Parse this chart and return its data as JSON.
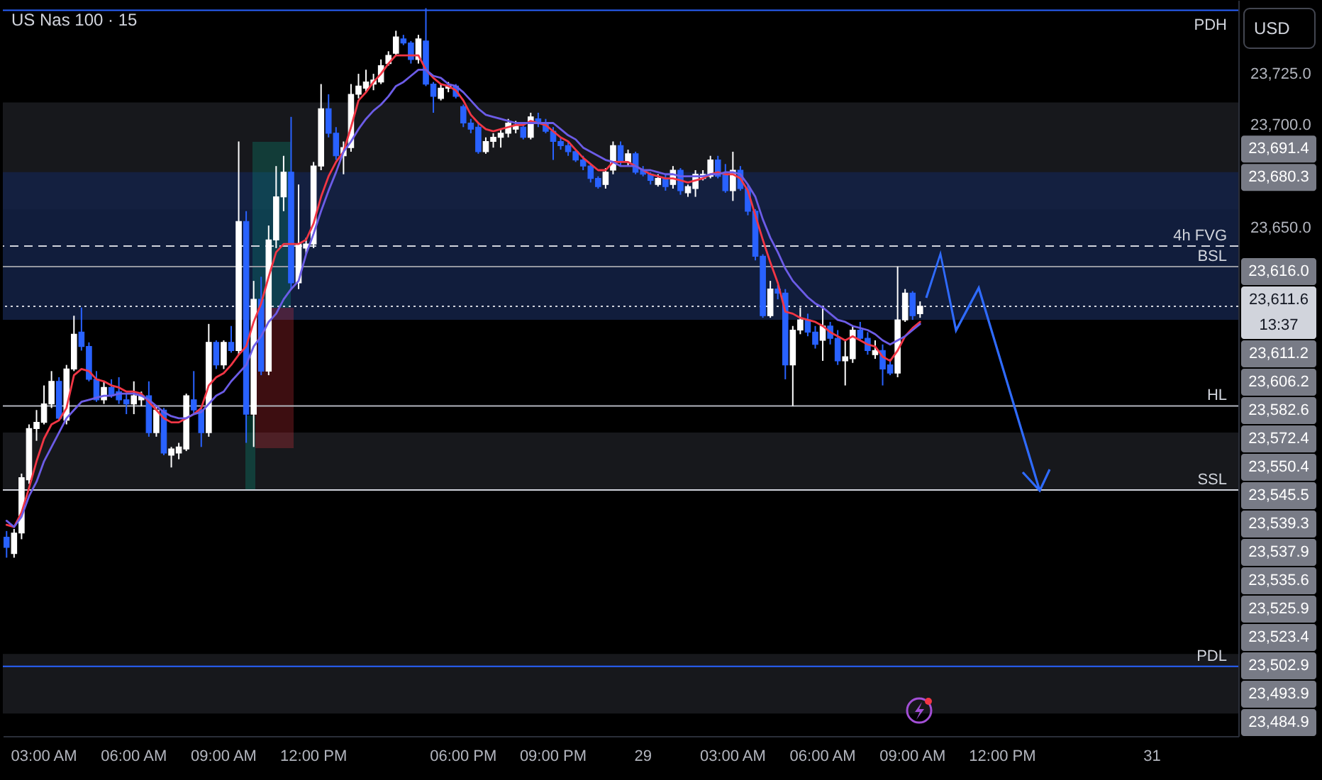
{
  "chart_data": {
    "type": "candlestick",
    "title": "US Nas 100 · 15",
    "categories": [
      null,
      null,
      null,
      null,
      null,
      "03:00 AM",
      null,
      null,
      null,
      null,
      null,
      null,
      null,
      null,
      null,
      null,
      null,
      "06:00 AM",
      null,
      null,
      null,
      null,
      null,
      null,
      null,
      null,
      null,
      null,
      null,
      "09:00 AM",
      null,
      null,
      null,
      null,
      null,
      null,
      null,
      null,
      null,
      null,
      null,
      "12:00 PM",
      null,
      null,
      null,
      null,
      null,
      null,
      null,
      null,
      null,
      null,
      null,
      null,
      null,
      null,
      null,
      null,
      null,
      null,
      null,
      "06:00 PM",
      null,
      null,
      null,
      null,
      null,
      null,
      null,
      null,
      null,
      null,
      null,
      "09:00 PM",
      null,
      null,
      null,
      null,
      null,
      null,
      null,
      null,
      null,
      null,
      null,
      "29",
      null,
      null,
      null,
      null,
      null,
      null,
      null,
      null,
      null,
      null,
      null,
      "03:00 AM",
      null,
      null,
      null,
      null,
      null,
      null,
      null,
      null,
      null,
      null,
      null,
      "06:00 AM",
      null,
      null,
      null,
      null,
      null,
      null,
      null,
      null,
      null,
      null,
      null,
      "09:00 AM",
      null,
      null,
      null,
      null,
      null,
      null,
      null,
      null,
      null,
      null,
      null,
      "12:00 PM",
      null,
      null,
      null,
      null,
      null,
      null,
      null,
      null,
      null,
      null,
      null,
      null,
      null,
      null,
      null,
      null,
      null,
      null,
      null,
      "31",
      null,
      null,
      null,
      null,
      null,
      null,
      null,
      null,
      null,
      null,
      null
    ],
    "ohlc": [
      [
        23499,
        23502,
        23489,
        23494
      ],
      [
        23491,
        23503,
        23489,
        23501
      ],
      [
        23501,
        23530,
        23498,
        23528
      ],
      [
        23527,
        23554,
        23525,
        23552
      ],
      [
        23552,
        23561,
        23546,
        23555
      ],
      [
        23555,
        23573,
        23554,
        23564
      ],
      [
        23564,
        23580,
        23562,
        23575
      ],
      [
        23575,
        23577,
        23556,
        23557
      ],
      [
        23556,
        23583,
        23554,
        23581
      ],
      [
        23581,
        23607,
        23580,
        23598
      ],
      [
        23599,
        23611,
        23590,
        23592
      ],
      [
        23592,
        23594,
        23575,
        23576
      ],
      [
        23576,
        23580,
        23565,
        23566
      ],
      [
        23566,
        23575,
        23564,
        23572
      ],
      [
        23572,
        23576,
        23567,
        23568
      ],
      [
        23570,
        23577,
        23564,
        23566
      ],
      [
        23566,
        23569,
        23559,
        23564
      ],
      [
        23564,
        23575,
        23559,
        23568
      ],
      [
        23566,
        23570,
        23563,
        23568
      ],
      [
        23568,
        23575,
        23548,
        23550
      ],
      [
        23550,
        23563,
        23548,
        23561
      ],
      [
        23561,
        23562,
        23539,
        23540
      ],
      [
        23539,
        23543,
        23533,
        23542
      ],
      [
        23540,
        23545,
        23537,
        23543
      ],
      [
        23542,
        23569,
        23541,
        23568
      ],
      [
        23566,
        23580,
        23559,
        23561
      ],
      [
        23561,
        23563,
        23543,
        23550
      ],
      [
        23550,
        23603,
        23548,
        23594
      ],
      [
        23594,
        23595,
        23581,
        23583
      ],
      [
        23583,
        23595,
        23581,
        23594
      ],
      [
        23594,
        23602,
        23589,
        23590
      ],
      [
        23590,
        23692,
        23588,
        23653
      ],
      [
        23653,
        23658,
        23545,
        23559
      ],
      [
        23559,
        23624,
        23543,
        23615
      ],
      [
        23615,
        23626,
        23578,
        23580
      ],
      [
        23580,
        23651,
        23578,
        23644
      ],
      [
        23644,
        23680,
        23640,
        23665
      ],
      [
        23665,
        23685,
        23658,
        23677
      ],
      [
        23677,
        23704,
        23620,
        23623
      ],
      [
        23623,
        23671,
        23620,
        23642
      ],
      [
        23640,
        23645,
        23637,
        23642
      ],
      [
        23642,
        23682,
        23640,
        23680
      ],
      [
        23680,
        23720,
        23678,
        23708
      ],
      [
        23708,
        23715,
        23694,
        23696
      ],
      [
        23696,
        23699,
        23683,
        23685
      ],
      [
        23685,
        23692,
        23676,
        23689
      ],
      [
        23689,
        23720,
        23687,
        23715
      ],
      [
        23715,
        23725,
        23713,
        23719
      ],
      [
        23718,
        23727,
        23716,
        23721
      ],
      [
        23720,
        23725,
        23717,
        23722
      ],
      [
        23721,
        23732,
        23720,
        23729
      ],
      [
        23730,
        23736,
        23729,
        23734
      ],
      [
        23735,
        23746,
        23734,
        23743
      ],
      [
        23742,
        23744,
        23739,
        23740
      ],
      [
        23740,
        23741,
        23730,
        23732
      ],
      [
        23732,
        23744,
        23730,
        23742
      ],
      [
        23741,
        23757,
        23719,
        23720
      ],
      [
        23720,
        23721,
        23706,
        23714
      ],
      [
        23713,
        23720,
        23712,
        23718
      ],
      [
        23718,
        23721,
        23716,
        23719
      ],
      [
        23719,
        23720,
        23713,
        23714
      ],
      [
        23709,
        23710,
        23699,
        23701
      ],
      [
        23701,
        23703,
        23696,
        23698
      ],
      [
        23699,
        23701,
        23686,
        23687
      ],
      [
        23687,
        23694,
        23686,
        23692
      ],
      [
        23692,
        23696,
        23689,
        23694
      ],
      [
        23694,
        23698,
        23689,
        23696
      ],
      [
        23696,
        23703,
        23694,
        23701
      ],
      [
        23698,
        23702,
        23696,
        23700
      ],
      [
        23699,
        23701,
        23693,
        23694
      ],
      [
        23694,
        23706,
        23693,
        23704
      ],
      [
        23703,
        23706,
        23699,
        23701
      ],
      [
        23701,
        23703,
        23696,
        23697
      ],
      [
        23697,
        23699,
        23683,
        23692
      ],
      [
        23692,
        23694,
        23688,
        23690
      ],
      [
        23690,
        23692,
        23685,
        23687
      ],
      [
        23687,
        23688,
        23682,
        23683
      ],
      [
        23683,
        23685,
        23678,
        23680
      ],
      [
        23680,
        23681,
        23672,
        23674
      ],
      [
        23674,
        23675,
        23669,
        23670
      ],
      [
        23671,
        23679,
        23669,
        23677
      ],
      [
        23678,
        23692,
        23676,
        23690
      ],
      [
        23690,
        23692,
        23680,
        23682
      ],
      [
        23682,
        23688,
        23680,
        23686
      ],
      [
        23686,
        23687,
        23676,
        23677
      ],
      [
        23678,
        23680,
        23675,
        23676
      ],
      [
        23676,
        23677,
        23671,
        23673
      ],
      [
        23671,
        23676,
        23670,
        23674
      ],
      [
        23674,
        23676,
        23668,
        23670
      ],
      [
        23671,
        23680,
        23669,
        23678
      ],
      [
        23678,
        23679,
        23666,
        23668
      ],
      [
        23667,
        23671,
        23665,
        23670
      ],
      [
        23669,
        23678,
        23665,
        23676
      ],
      [
        23674,
        23678,
        23673,
        23676
      ],
      [
        23675,
        23685,
        23674,
        23683
      ],
      [
        23683,
        23685,
        23674,
        23675
      ],
      [
        23676,
        23681,
        23667,
        23668
      ],
      [
        23668,
        23687,
        23663,
        23678
      ],
      [
        23678,
        23680,
        23668,
        23669
      ],
      [
        23669,
        23671,
        23656,
        23658
      ],
      [
        23658,
        23659,
        23634,
        23636
      ],
      [
        23636,
        23637,
        23606,
        23607
      ],
      [
        23607,
        23624,
        23606,
        23620
      ],
      [
        23620,
        23622,
        23615,
        23618
      ],
      [
        23618,
        23620,
        23576,
        23583
      ],
      [
        23583,
        23602,
        23563,
        23600
      ],
      [
        23600,
        23611,
        23598,
        23605
      ],
      [
        23605,
        23608,
        23597,
        23599
      ],
      [
        23599,
        23602,
        23591,
        23593
      ],
      [
        23595,
        23611,
        23585,
        23602
      ],
      [
        23602,
        23604,
        23593,
        23596
      ],
      [
        23596,
        23600,
        23583,
        23585
      ],
      [
        23585,
        23595,
        23573,
        23587
      ],
      [
        23586,
        23602,
        23584,
        23600
      ],
      [
        23600,
        23604,
        23595,
        23596
      ],
      [
        23596,
        23599,
        23588,
        23590
      ],
      [
        23588,
        23595,
        23586,
        23590
      ],
      [
        23590,
        23593,
        23573,
        23581
      ],
      [
        23583,
        23586,
        23578,
        23579
      ],
      [
        23579,
        23631,
        23577,
        23605
      ],
      [
        23605,
        23620,
        23604,
        23618
      ],
      [
        23618,
        23619,
        23605,
        23607
      ],
      [
        23608,
        23614,
        23606,
        23611.6
      ],
      null,
      null,
      null,
      null,
      null,
      null,
      null,
      null,
      null,
      null,
      null,
      null,
      null,
      null,
      null,
      null,
      null,
      null,
      null,
      null,
      null,
      null,
      null,
      null,
      null,
      null,
      null,
      null,
      null,
      null,
      null,
      null,
      null,
      null,
      null,
      null,
      null,
      null,
      null,
      null,
      null,
      null
    ],
    "colors": [
      "#2962ff",
      "#ffffff",
      "#ffffff",
      "#ffffff",
      "#ffffff",
      "#ffffff",
      "#ffffff",
      "#2962ff",
      "#ffffff",
      "#ffffff",
      "#2962ff",
      "#2962ff",
      "#2962ff",
      "#ffffff",
      "#2962ff",
      "#2962ff",
      "#2962ff",
      "#ffffff",
      "#ffffff",
      "#2962ff",
      "#ffffff",
      "#2962ff",
      "#ffffff",
      "#ffffff",
      "#ffffff",
      "#2962ff",
      "#2962ff",
      "#ffffff",
      "#2962ff",
      "#ffffff",
      "#2962ff",
      "#ffffff",
      "#2962ff",
      "#ffffff",
      "#2962ff",
      "#ffffff",
      "#ffffff",
      "#ffffff",
      "#2962ff",
      "#ffffff",
      "#ffffff",
      "#ffffff",
      "#ffffff",
      "#2962ff",
      "#2962ff",
      "#ffffff",
      "#ffffff",
      "#ffffff",
      "#ffffff",
      "#ffffff",
      "#ffffff",
      "#ffffff",
      "#ffffff",
      "#2962ff",
      "#2962ff",
      "#ffffff",
      "#2962ff",
      "#2962ff",
      "#ffffff",
      "#ffffff",
      "#2962ff",
      "#2962ff",
      "#2962ff",
      "#2962ff",
      "#ffffff",
      "#ffffff",
      "#ffffff",
      "#ffffff",
      "#ffffff",
      "#2962ff",
      "#ffffff",
      "#2962ff",
      "#2962ff",
      "#2962ff",
      "#2962ff",
      "#2962ff",
      "#2962ff",
      "#2962ff",
      "#2962ff",
      "#2962ff",
      "#ffffff",
      "#ffffff",
      "#2962ff",
      "#ffffff",
      "#2962ff",
      "#2962ff",
      "#2962ff",
      "#ffffff",
      "#2962ff",
      "#ffffff",
      "#2962ff",
      "#ffffff",
      "#ffffff",
      "#ffffff",
      "#ffffff",
      "#2962ff",
      "#2962ff",
      "#ffffff",
      "#2962ff",
      "#2962ff",
      "#2962ff",
      "#2962ff",
      "#ffffff",
      "#2962ff",
      "#2962ff",
      "#ffffff",
      "#ffffff",
      "#2962ff",
      "#2962ff",
      "#ffffff",
      "#2962ff",
      "#2962ff",
      "#ffffff",
      "#ffffff",
      "#2962ff",
      "#2962ff",
      "#ffffff",
      "#2962ff",
      "#2962ff",
      "#ffffff",
      "#ffffff",
      "#2962ff",
      "#ffffff",
      null,
      null,
      null,
      null,
      null,
      null,
      null,
      null,
      null,
      null,
      null,
      null,
      null,
      null,
      null,
      null,
      null,
      null,
      null,
      null,
      null,
      null,
      null,
      null,
      null,
      null,
      null,
      null,
      null,
      null,
      null,
      null,
      null,
      null,
      null,
      null,
      null,
      null,
      null,
      null,
      null,
      null
    ],
    "series": [
      {
        "type": "line",
        "color": "#f23645",
        "values": [
          23505,
          23504,
          23511,
          23523,
          23536,
          23547,
          23554,
          23556,
          23562,
          23578,
          23581,
          23580,
          23576,
          23575,
          23573,
          23572,
          23570,
          23570,
          23569,
          23565,
          23561,
          23557,
          23555,
          23555,
          23557,
          23559,
          23562,
          23573,
          23577,
          23579,
          23583,
          23588,
          23592,
          23604,
          23613,
          23626,
          23638,
          23642,
          23642,
          23642,
          23644,
          23652,
          23665,
          23675,
          23682,
          23687,
          23699,
          23712,
          23716,
          23721,
          23725,
          23730,
          23734,
          23734,
          23734,
          23734,
          23727,
          23723,
          23720,
          23719,
          23717,
          23712,
          23705,
          23701,
          23698,
          23697,
          23698,
          23699,
          23700,
          23700,
          23702,
          23701,
          23700,
          23697,
          23694,
          23692,
          23688,
          23684,
          23681,
          23678,
          23678,
          23682,
          23682,
          23682,
          23680,
          23678,
          23676,
          23675,
          23674,
          23674,
          23673,
          23672,
          23673,
          23674,
          23676,
          23677,
          23676,
          23676,
          23674,
          23668,
          23656,
          23644,
          23633,
          23623,
          23609,
          23608,
          23606,
          23605,
          23604,
          23602,
          23599,
          23597,
          23595,
          23597,
          23595,
          23593,
          23592,
          23587,
          23585,
          23590,
          23597,
          23601,
          23604,
          null,
          null,
          null,
          null,
          null,
          null,
          null,
          null,
          null,
          null,
          null,
          null,
          null,
          null,
          null,
          null,
          null,
          null,
          null,
          null,
          null,
          null,
          null,
          null,
          null,
          null,
          null,
          null,
          null,
          null,
          null,
          null,
          null,
          null,
          null,
          null,
          null,
          null,
          null,
          null,
          null,
          null
        ]
      },
      {
        "type": "line",
        "color": "#6c5ce7",
        "values": [
          23507,
          23504,
          23509,
          23519,
          23526,
          23536,
          23543,
          23550,
          23557,
          23561,
          23565,
          23566,
          23567,
          23568,
          23568,
          23569,
          23569,
          23569,
          23568,
          23566,
          23563,
          23560,
          23558,
          23557,
          23557,
          23559,
          23560,
          23564,
          23568,
          23570,
          23575,
          23579,
          23583,
          23592,
          23597,
          23604,
          23608,
          23615,
          23620,
          23624,
          23637,
          23647,
          23658,
          23668,
          23677,
          23687,
          23692,
          23698,
          23703,
          23707,
          23710,
          23714,
          23719,
          23721,
          23724,
          23727,
          23727,
          23724,
          23723,
          23720,
          23719,
          23716,
          23712,
          23708,
          23705,
          23704,
          23703,
          23702,
          23701,
          23701,
          23701,
          23701,
          23701,
          23701,
          23698,
          23695,
          23693,
          23689,
          23687,
          23685,
          23683,
          23682,
          23680,
          23680,
          23680,
          23678,
          23678,
          23677,
          23676,
          23676,
          23675,
          23675,
          23675,
          23675,
          23676,
          23676,
          23677,
          23677,
          23676,
          23671,
          23665,
          23654,
          23645,
          23638,
          23630,
          23624,
          23620,
          23616,
          23613,
          23611,
          23608,
          23605,
          23604,
          23602,
          23601,
          23600,
          23598,
          23595,
          23593,
          23595,
          23597,
          23600,
          23603,
          null,
          null,
          null,
          null,
          null,
          null,
          null,
          null,
          null,
          null,
          null,
          null,
          null,
          null,
          null,
          null,
          null,
          null,
          null,
          null,
          null,
          null,
          null,
          null,
          null,
          null,
          null,
          null,
          null,
          null,
          null,
          null,
          null,
          null,
          null,
          null,
          null,
          null,
          null,
          null,
          null,
          null
        ]
      }
    ],
    "ylim": [
      23402,
      23761
    ],
    "yticks": [
      {
        "value": 23650,
        "label": "23,650.0"
      },
      {
        "value": 23700,
        "label": "23,700.0"
      },
      {
        "value": 23725,
        "label": "23,725.0"
      }
    ],
    "ref_lines": [
      {
        "axis": "y",
        "value": 23756,
        "label": "PDH",
        "color": "#2962ff",
        "line_style": "solid"
      },
      {
        "axis": "y",
        "value": 23641,
        "label": "4h FVG",
        "color": "#d1d4dc",
        "line_style": "dashed"
      },
      {
        "axis": "y",
        "value": 23631,
        "label": "BSL",
        "color": "#9598a1",
        "line_style": "solid"
      },
      {
        "axis": "y",
        "value": 23611.6,
        "color": "#d1d4dc",
        "line_style": "dotted"
      },
      {
        "axis": "y",
        "value": 23563,
        "label": "HL",
        "color": "#b2b5be",
        "line_style": "solid"
      },
      {
        "axis": "y",
        "value": 23522,
        "label": "SSL",
        "color": "#d1d4dc",
        "line_style": "solid"
      },
      {
        "axis": "y",
        "value": 23436,
        "label": "PDL",
        "color": "#2962ff",
        "line_style": "solid"
      }
    ],
    "bands": [
      {
        "axis": "y",
        "from": 23659,
        "to": 23711,
        "color": "#1b1c21"
      },
      {
        "axis": "y",
        "from": 23522,
        "to": 23550,
        "color": "#1b1c21"
      },
      {
        "axis": "y",
        "from": 23413,
        "to": 23442,
        "color": "#1b1c21"
      },
      {
        "axis": "y",
        "from": 23605,
        "to": 23677,
        "color": "#142246"
      }
    ],
    "annotations": [
      "USD",
      "23,691.4",
      "23,680.3",
      "23,616.0",
      "23,611.6",
      "13:37",
      "23,611.2",
      "23,606.2",
      "23,582.6",
      "23,572.4",
      "23,550.4",
      "23,545.5",
      "23,539.3",
      "23,537.9",
      "23,535.6",
      "23,525.9",
      "23,523.4",
      "23,502.9",
      "23,493.9",
      "23,484.9"
    ]
  }
}
